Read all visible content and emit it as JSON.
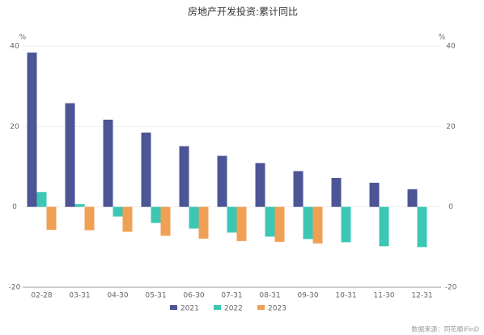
{
  "chart_data": {
    "type": "bar",
    "title": "房地产开发投资:累计同比",
    "categories": [
      "02-28",
      "03-31",
      "04-30",
      "05-31",
      "06-30",
      "07-31",
      "08-31",
      "09-30",
      "10-31",
      "11-30",
      "12-31"
    ],
    "series": [
      {
        "name": "2021",
        "color": "#4c5596",
        "values": [
          38.4,
          25.8,
          21.7,
          18.5,
          15.1,
          12.7,
          10.9,
          8.9,
          7.2,
          6.0,
          4.4
        ]
      },
      {
        "name": "2022",
        "color": "#3cc7b5",
        "values": [
          3.7,
          0.7,
          -2.4,
          -4.0,
          -5.4,
          -6.4,
          -7.4,
          -8.0,
          -8.8,
          -9.8,
          -10.0
        ]
      },
      {
        "name": "2023",
        "color": "#f0a054",
        "values": [
          -5.7,
          -5.8,
          -6.2,
          -7.2,
          -7.9,
          -8.5,
          -8.7,
          -9.1,
          null,
          null,
          null
        ]
      }
    ],
    "y_unit": "%",
    "y2_unit": "%",
    "ylim": [
      -20,
      40
    ],
    "yticks": [
      -20,
      0,
      20,
      40
    ],
    "y2lim": [
      -20,
      40
    ],
    "y2ticks": [
      -20,
      0,
      20,
      40
    ],
    "grid": true,
    "source": "数据来源：同花顺iFinD"
  }
}
